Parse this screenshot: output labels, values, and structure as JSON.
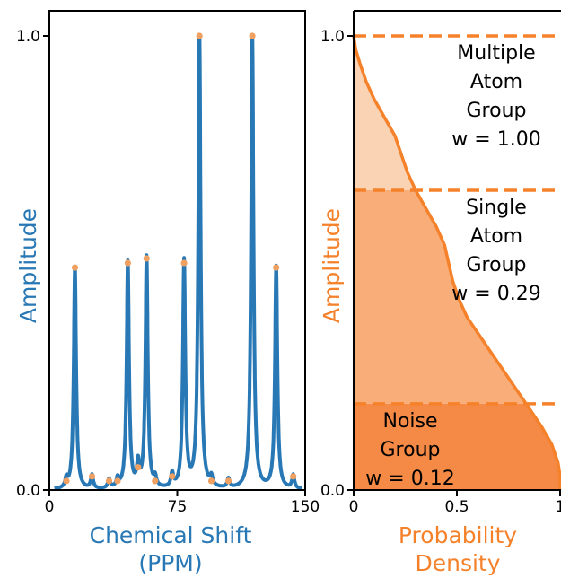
{
  "colors": {
    "spectrum": "#2878b5",
    "peak_marker": "#f0a060",
    "density": "#f5822b",
    "band_light": "#fad2b4",
    "band_mid": "#f9ad78",
    "band_dark": "#f48a45",
    "axis": "#000000"
  },
  "chart_data": [
    {
      "type": "line",
      "xlabel_lines": [
        "Chemical Shift",
        "(PPM)"
      ],
      "ylabel": "Amplitude",
      "xlim": [
        0,
        150
      ],
      "ylim": [
        0,
        1.0
      ],
      "xticks": [
        {
          "v": 0,
          "label": "0"
        },
        {
          "v": 75,
          "label": "75"
        },
        {
          "v": 150,
          "label": "150"
        }
      ],
      "yticks": [
        {
          "v": 0,
          "label": "0.0"
        },
        {
          "v": 1.0,
          "label": "1.0"
        }
      ],
      "grid": false,
      "peak_width": 0.85,
      "peaks": [
        {
          "x": 10,
          "y": 0.02
        },
        {
          "x": 15,
          "y": 0.49
        },
        {
          "x": 25,
          "y": 0.03
        },
        {
          "x": 35,
          "y": 0.02
        },
        {
          "x": 40,
          "y": 0.02
        },
        {
          "x": 46,
          "y": 0.5
        },
        {
          "x": 52,
          "y": 0.05
        },
        {
          "x": 57,
          "y": 0.51
        },
        {
          "x": 62,
          "y": 0.02
        },
        {
          "x": 72,
          "y": 0.03
        },
        {
          "x": 79,
          "y": 0.5
        },
        {
          "x": 88,
          "y": 1.0
        },
        {
          "x": 95,
          "y": 0.02
        },
        {
          "x": 105,
          "y": 0.02
        },
        {
          "x": 119,
          "y": 1.0
        },
        {
          "x": 133,
          "y": 0.49
        },
        {
          "x": 143,
          "y": 0.03
        }
      ]
    },
    {
      "type": "area",
      "xlabel_lines": [
        "Probability",
        "Density"
      ],
      "ylabel": "Amplitude",
      "xlim": [
        0,
        1.0
      ],
      "ylim": [
        0,
        1.0
      ],
      "xticks": [
        {
          "v": 0,
          "label": "0"
        },
        {
          "v": 0.5,
          "label": "0.5"
        },
        {
          "v": 1.0,
          "label": "1"
        }
      ],
      "yticks": [
        {
          "v": 0,
          "label": "0.0"
        },
        {
          "v": 1.0,
          "label": "1.0"
        }
      ],
      "grid": false,
      "density_curve": [
        {
          "y": 1.0,
          "x": 0.0
        },
        {
          "y": 0.97,
          "x": 0.01
        },
        {
          "y": 0.94,
          "x": 0.03
        },
        {
          "y": 0.9,
          "x": 0.06
        },
        {
          "y": 0.86,
          "x": 0.1
        },
        {
          "y": 0.82,
          "x": 0.15
        },
        {
          "y": 0.78,
          "x": 0.2
        },
        {
          "y": 0.74,
          "x": 0.23
        },
        {
          "y": 0.7,
          "x": 0.26
        },
        {
          "y": 0.66,
          "x": 0.3
        },
        {
          "y": 0.62,
          "x": 0.35
        },
        {
          "y": 0.58,
          "x": 0.4
        },
        {
          "y": 0.54,
          "x": 0.44
        },
        {
          "y": 0.5,
          "x": 0.46
        },
        {
          "y": 0.46,
          "x": 0.48
        },
        {
          "y": 0.42,
          "x": 0.51
        },
        {
          "y": 0.38,
          "x": 0.55
        },
        {
          "y": 0.34,
          "x": 0.61
        },
        {
          "y": 0.3,
          "x": 0.67
        },
        {
          "y": 0.26,
          "x": 0.73
        },
        {
          "y": 0.22,
          "x": 0.79
        },
        {
          "y": 0.18,
          "x": 0.85
        },
        {
          "y": 0.14,
          "x": 0.91
        },
        {
          "y": 0.1,
          "x": 0.96
        },
        {
          "y": 0.06,
          "x": 0.99
        },
        {
          "y": 0.03,
          "x": 1.0
        },
        {
          "y": 0.0,
          "x": 1.0
        }
      ],
      "thresholds": [
        1.0,
        0.66,
        0.19
      ],
      "groups": [
        {
          "lines": [
            "Multiple",
            "Atom",
            "Group",
            "w = 1.00"
          ],
          "y_top": 1.0,
          "y_bottom": 0.66
        },
        {
          "lines": [
            "Single",
            "Atom",
            "Group",
            "w = 0.29"
          ],
          "y_top": 0.66,
          "y_bottom": 0.19
        },
        {
          "lines": [
            "Noise",
            "Group",
            "w = 0.12"
          ],
          "y_top": 0.19,
          "y_bottom": 0.0
        }
      ]
    }
  ]
}
